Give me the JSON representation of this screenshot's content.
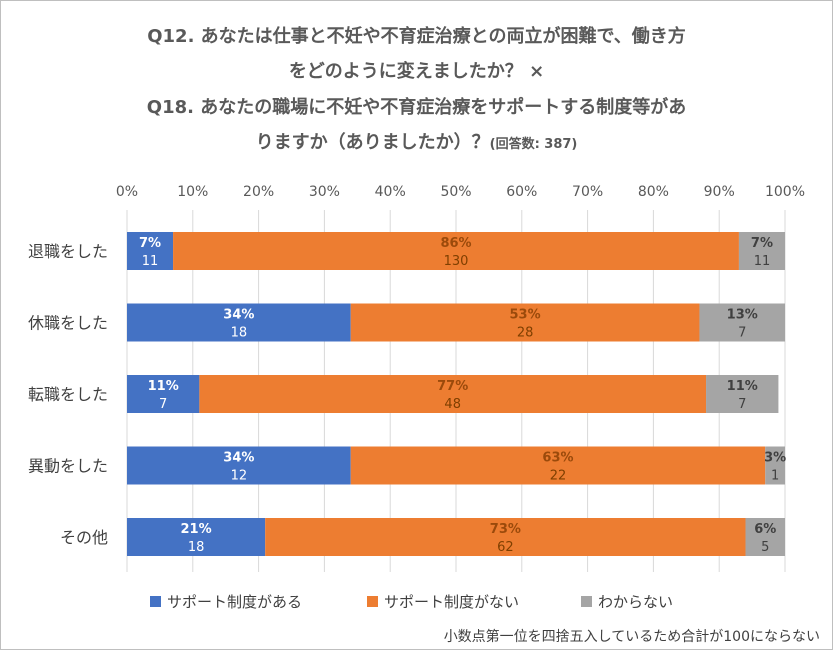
{
  "title": {
    "line1": "Q12. あなたは仕事と不妊や不育症治療との両立が困難で、働き方",
    "line2": "をどのように変えましたか？ ×",
    "line3": "Q18. あなたの職場に不妊や不育症治療をサポートする制度等があ",
    "line4": "りますか（ありましたか）？",
    "line4_suffix": "(回答数: 387)"
  },
  "footnote": "小数点第一位を四捨五入しているため合計が100にならない",
  "colors": {
    "series1": "#4472C4",
    "series2": "#ED7D31",
    "series3": "#A5A5A5"
  },
  "chart_data": {
    "type": "bar",
    "orientation": "horizontal",
    "stacked": "percent",
    "title": "Q12. あなたは仕事と不妊や不育症治療との両立が困難で、働き方をどのように変えましたか？ × Q18. あなたの職場に不妊や不育症治療をサポートする制度等がありますか（ありましたか）？(回答数: 387)",
    "categories": [
      "退職をした",
      "休職をした",
      "転職をした",
      "異動をした",
      "その他"
    ],
    "xlim": [
      0,
      100
    ],
    "xticks": [
      "0%",
      "10%",
      "20%",
      "30%",
      "40%",
      "50%",
      "60%",
      "70%",
      "80%",
      "90%",
      "100%"
    ],
    "legend_position": "bottom",
    "series": [
      {
        "name": "サポート制度がある",
        "percent_labels": [
          "7%",
          "34%",
          "11%",
          "34%",
          "21%"
        ],
        "values": [
          7,
          34,
          11,
          34,
          21
        ],
        "counts": [
          11,
          18,
          7,
          12,
          18
        ]
      },
      {
        "name": "サポート制度がない",
        "percent_labels": [
          "86%",
          "53%",
          "77%",
          "63%",
          "73%"
        ],
        "values": [
          86,
          53,
          77,
          63,
          73
        ],
        "counts": [
          130,
          28,
          48,
          22,
          62
        ]
      },
      {
        "name": "わからない",
        "percent_labels": [
          "7%",
          "13%",
          "11%",
          "3%",
          "6%"
        ],
        "values": [
          7,
          13,
          11,
          3,
          6
        ],
        "counts": [
          11,
          7,
          7,
          1,
          5
        ]
      }
    ]
  }
}
